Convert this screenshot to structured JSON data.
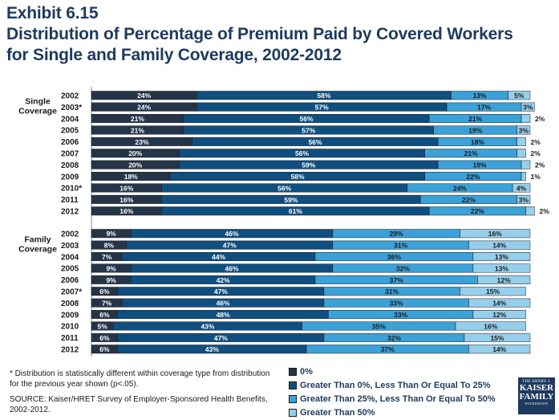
{
  "title": {
    "line1": "Exhibit 6.15",
    "line2": "Distribution of Percentage of Premium Paid by Covered Workers",
    "line3": "for Single and Family Coverage, 2002-2012"
  },
  "colors": {
    "zero": "#253549",
    "low": "#0f4f80",
    "mid": "#3aa1d9",
    "high": "#96cfec"
  },
  "chart_data": {
    "type": "bar",
    "orientation": "horizontal",
    "stacked": true,
    "units": "percent",
    "xlim": [
      0,
      100
    ],
    "series": [
      {
        "name": "0%",
        "key": "zero"
      },
      {
        "name": "Greater Than 0%, Less Than Or Equal To 25%",
        "key": "low"
      },
      {
        "name": "Greater Than 25%, Less Than Or Equal To 50%",
        "key": "mid"
      },
      {
        "name": "Greater Than 50%",
        "key": "high"
      }
    ],
    "groups": [
      {
        "label": "Single Coverage",
        "rows": [
          {
            "year": "2002",
            "values": [
              24,
              58,
              13,
              5
            ]
          },
          {
            "year": "2003*",
            "values": [
              24,
              57,
              17,
              3
            ]
          },
          {
            "year": "2004",
            "values": [
              21,
              56,
              21,
              2
            ]
          },
          {
            "year": "2005",
            "values": [
              21,
              57,
              19,
              3
            ]
          },
          {
            "year": "2006",
            "values": [
              23,
              56,
              18,
              2
            ]
          },
          {
            "year": "2007",
            "values": [
              20,
              56,
              21,
              2
            ]
          },
          {
            "year": "2008",
            "values": [
              20,
              59,
              19,
              2
            ]
          },
          {
            "year": "2009",
            "values": [
              18,
              58,
              22,
              1
            ]
          },
          {
            "year": "2010*",
            "values": [
              16,
              56,
              24,
              4
            ]
          },
          {
            "year": "2011",
            "values": [
              16,
              59,
              22,
              3
            ]
          },
          {
            "year": "2012",
            "values": [
              16,
              61,
              22,
              2
            ]
          }
        ]
      },
      {
        "label": "Family Coverage",
        "rows": [
          {
            "year": "2002",
            "values": [
              9,
              46,
              29,
              16
            ]
          },
          {
            "year": "2003",
            "values": [
              8,
              47,
              31,
              14
            ]
          },
          {
            "year": "2004",
            "values": [
              7,
              44,
              36,
              13
            ]
          },
          {
            "year": "2005",
            "values": [
              9,
              46,
              32,
              13
            ]
          },
          {
            "year": "2006",
            "values": [
              9,
              42,
              37,
              12
            ]
          },
          {
            "year": "2007*",
            "values": [
              6,
              47,
              31,
              15
            ]
          },
          {
            "year": "2008",
            "values": [
              7,
              46,
              33,
              14
            ]
          },
          {
            "year": "2009",
            "values": [
              6,
              48,
              33,
              12
            ]
          },
          {
            "year": "2010",
            "values": [
              5,
              43,
              35,
              16
            ]
          },
          {
            "year": "2011",
            "values": [
              6,
              47,
              32,
              15
            ]
          },
          {
            "year": "2012",
            "values": [
              6,
              43,
              37,
              14
            ]
          }
        ]
      }
    ]
  },
  "legend": {
    "items": [
      "0%",
      "Greater Than 0%, Less Than Or Equal To 25%",
      "Greater Than 25%, Less Than Or Equal To 50%",
      "Greater Than 50%"
    ]
  },
  "footnote": {
    "note": "* Distribution is statistically different within coverage type from distribution for the previous year shown (p<.05).",
    "source": "SOURCE:  Kaiser/HRET Survey of Employer-Sponsored Health Benefits, 2002-2012."
  },
  "logo": {
    "line1": "THE HENRY J.",
    "line2": "KAISER",
    "line3": "FAMILY",
    "line4": "FOUNDATION"
  }
}
